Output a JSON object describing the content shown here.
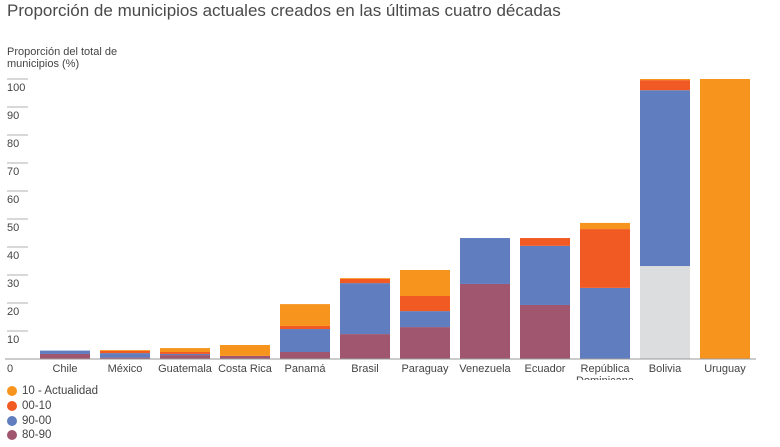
{
  "chart_data": {
    "type": "bar",
    "stacked": true,
    "title": "Proporción de municipios actuales creados en las últimas cuatro décadas",
    "ylabel": "Proporción del total de municipios (%)",
    "xlabel": "",
    "ylim": [
      0,
      100
    ],
    "yticks": [
      "0",
      "10",
      "20",
      "30",
      "40",
      "50",
      "60",
      "70",
      "80",
      "90",
      "100"
    ],
    "categories": [
      "Chile",
      "México",
      "Guatemala",
      "Costa Rica",
      "Panamá",
      "Brasil",
      "Paraguay",
      "Venezuela",
      "Ecuador",
      "República Dominicana",
      "Bolivia",
      "Uruguay"
    ],
    "series": [
      {
        "name": "",
        "color": "#DCDDDE",
        "values": [
          0,
          0,
          0,
          0,
          0,
          0,
          0,
          0,
          0,
          0,
          33.2,
          0
        ]
      },
      {
        "name": "80-90",
        "color": "#A0566E",
        "values": [
          1.8,
          0.5,
          1.4,
          1.1,
          2.5,
          8.9,
          11.4,
          26.8,
          19.3,
          0,
          0,
          0
        ]
      },
      {
        "name": "90-00",
        "color": "#5F7DBF",
        "values": [
          1.2,
          1.6,
          0.4,
          0,
          8.2,
          18.2,
          5.7,
          16.4,
          21.1,
          25.4,
          62.8,
          0
        ]
      },
      {
        "name": "00-10",
        "color": "#F15A22",
        "values": [
          0,
          0.8,
          0.7,
          0,
          1.1,
          1.5,
          5.4,
          0,
          2.8,
          21.0,
          3.6,
          0
        ]
      },
      {
        "name": "10 - Actualidad",
        "color": "#F7941D",
        "values": [
          0,
          0.3,
          1.4,
          3.9,
          7.8,
          0.3,
          9.3,
          0,
          0,
          2.2,
          0.4,
          100
        ]
      }
    ],
    "legend": {
      "placement": "bottom-left",
      "order": [
        "10 - Actualidad",
        "00-10",
        "90-00",
        "80-90"
      ]
    },
    "grid": false
  }
}
